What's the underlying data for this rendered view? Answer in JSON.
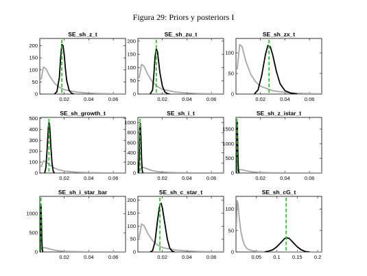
{
  "figure_title": "Figura 29: Priors y posteriors I",
  "colors": {
    "prior": "#a6a6a6",
    "posterior": "#000000",
    "mode": "#22cc22"
  },
  "chart_data": [
    {
      "type": "line",
      "title": "SE_sh_z_t",
      "xlim": [
        0,
        0.07
      ],
      "ylim": [
        0,
        230
      ],
      "xticks": [
        0.02,
        0.04,
        0.06
      ],
      "xtick_labels": [
        "0.02",
        "0.04",
        "0.06"
      ],
      "yticks": [
        0,
        50,
        100,
        150,
        200
      ],
      "ytick_labels": [
        "0",
        "50",
        "100",
        "150",
        "200"
      ],
      "series": [
        {
          "x": [
            0.001,
            0.003,
            0.005,
            0.008,
            0.012,
            0.016,
            0.02,
            0.03,
            0.04,
            0.05,
            0.06,
            0.07
          ],
          "y": [
            60,
            112,
            105,
            75,
            45,
            28,
            18,
            8,
            4,
            2,
            1,
            0.5
          ]
        },
        {
          "x": [
            0.012,
            0.014,
            0.016,
            0.017,
            0.018,
            0.019,
            0.02,
            0.021,
            0.022,
            0.024,
            0.026,
            0.028
          ],
          "y": [
            0,
            10,
            70,
            150,
            205,
            200,
            160,
            100,
            55,
            15,
            3,
            0
          ]
        }
      ],
      "mode_x": 0.018
    },
    {
      "type": "line",
      "title": "SE_sh_zu_t",
      "xlim": [
        0,
        0.07
      ],
      "ylim": [
        0,
        210
      ],
      "xticks": [
        0.02,
        0.04,
        0.06
      ],
      "xtick_labels": [
        "0.02",
        "0.04",
        "0.06"
      ],
      "yticks": [
        0,
        50,
        100,
        150,
        200
      ],
      "ytick_labels": [
        "0",
        "50",
        "100",
        "150",
        "200"
      ],
      "series": [
        {
          "x": [
            0.001,
            0.003,
            0.005,
            0.008,
            0.012,
            0.016,
            0.02,
            0.03,
            0.04,
            0.05,
            0.06,
            0.07
          ],
          "y": [
            60,
            112,
            105,
            75,
            45,
            28,
            18,
            8,
            4,
            2,
            1,
            0.5
          ]
        },
        {
          "x": [
            0.01,
            0.012,
            0.013,
            0.014,
            0.015,
            0.016,
            0.017,
            0.018,
            0.02,
            0.022,
            0.024,
            0.026
          ],
          "y": [
            0,
            15,
            70,
            140,
            170,
            160,
            120,
            80,
            30,
            8,
            2,
            0
          ]
        }
      ],
      "mode_x": 0.015
    },
    {
      "type": "line",
      "title": "SE_sh_zx_t",
      "xlim": [
        0,
        0.07
      ],
      "ylim": [
        0,
        135
      ],
      "xticks": [
        0.02,
        0.04,
        0.06
      ],
      "xtick_labels": [
        "0.02",
        "0.04",
        "0.06"
      ],
      "yticks": [
        0,
        50,
        100
      ],
      "ytick_labels": [
        "0",
        "50",
        "100"
      ],
      "series": [
        {
          "x": [
            0.001,
            0.003,
            0.005,
            0.008,
            0.012,
            0.016,
            0.02,
            0.03,
            0.04,
            0.05,
            0.06,
            0.07
          ],
          "y": [
            60,
            120,
            115,
            80,
            48,
            30,
            19,
            8,
            4,
            2,
            1,
            0.5
          ]
        },
        {
          "x": [
            0.015,
            0.018,
            0.021,
            0.024,
            0.026,
            0.028,
            0.03,
            0.033,
            0.036,
            0.04,
            0.045,
            0.05
          ],
          "y": [
            0,
            10,
            45,
            95,
            118,
            115,
            95,
            55,
            25,
            8,
            2,
            0
          ]
        }
      ],
      "mode_x": 0.027
    },
    {
      "type": "line",
      "title": "SE_sh_growth_t",
      "xlim": [
        0,
        0.07
      ],
      "ylim": [
        0,
        510
      ],
      "xticks": [
        0.02,
        0.04,
        0.06
      ],
      "xtick_labels": [
        "0.02",
        "0.04",
        "0.06"
      ],
      "yticks": [
        0,
        100,
        200,
        300,
        400,
        500
      ],
      "ytick_labels": [
        "0",
        "100",
        "200",
        "300",
        "400",
        "500"
      ],
      "series": [
        {
          "x": [
            0.001,
            0.003,
            0.005,
            0.008,
            0.012,
            0.016,
            0.02,
            0.03,
            0.04,
            0.05,
            0.06,
            0.07
          ],
          "y": [
            55,
            110,
            105,
            75,
            45,
            28,
            18,
            8,
            4,
            2,
            1,
            0.5
          ]
        },
        {
          "x": [
            0.004,
            0.005,
            0.006,
            0.007,
            0.0075,
            0.008,
            0.0085,
            0.009,
            0.01,
            0.011,
            0.012
          ],
          "y": [
            0,
            50,
            220,
            420,
            460,
            440,
            360,
            250,
            90,
            15,
            0
          ]
        }
      ],
      "mode_x": 0.0075
    },
    {
      "type": "line",
      "title": "SE_sh_i_t",
      "xlim": [
        0,
        0.07
      ],
      "ylim": [
        0,
        1100
      ],
      "xticks": [
        0.02,
        0.04,
        0.06
      ],
      "xtick_labels": [
        "0.02",
        "0.04",
        "0.06"
      ],
      "yticks": [
        0,
        200,
        400,
        600,
        800,
        1000
      ],
      "ytick_labels": [
        "0",
        "200",
        "400",
        "600",
        "800",
        "1000"
      ],
      "series": [
        {
          "x": [
            0.001,
            0.003,
            0.005,
            0.008,
            0.012,
            0.016,
            0.02,
            0.03,
            0.04,
            0.05,
            0.06,
            0.07
          ],
          "y": [
            60,
            115,
            108,
            78,
            46,
            29,
            18,
            8,
            4,
            2,
            1,
            0.5
          ]
        },
        {
          "x": [
            0.0005,
            0.001,
            0.0015,
            0.002,
            0.0025,
            0.003,
            0.0035,
            0.004
          ],
          "y": [
            0,
            300,
            900,
            980,
            700,
            300,
            60,
            0
          ]
        }
      ],
      "mode_x": 0.0018
    },
    {
      "type": "line",
      "title": "SE_sh_z_istar_t",
      "xlim": [
        0,
        0.07
      ],
      "ylim": [
        0,
        1900
      ],
      "xticks": [
        0.02,
        0.04,
        0.06
      ],
      "xtick_labels": [
        "0.02",
        "0.04",
        "0.06"
      ],
      "yticks": [
        0,
        500,
        1000,
        1500
      ],
      "ytick_labels": [
        "0",
        "500",
        "1000",
        "1500"
      ],
      "series": [
        {
          "x": [
            0.001,
            0.003,
            0.005,
            0.008,
            0.012,
            0.016,
            0.02,
            0.03,
            0.04,
            0.05,
            0.06,
            0.07
          ],
          "y": [
            60,
            115,
            108,
            78,
            46,
            29,
            18,
            8,
            4,
            2,
            1,
            0.5
          ]
        },
        {
          "x": [
            0.0002,
            0.0005,
            0.0008,
            0.001,
            0.0013,
            0.0016,
            0.002,
            0.0025
          ],
          "y": [
            0,
            500,
            1600,
            1750,
            1300,
            600,
            100,
            0
          ]
        }
      ],
      "mode_x": 0.0009
    },
    {
      "type": "line",
      "title": "SE_sh_i_star_bar",
      "xlim": [
        0,
        0.07
      ],
      "ylim": [
        0,
        1450
      ],
      "xticks": [
        0.02,
        0.04,
        0.06
      ],
      "xtick_labels": [
        "0.02",
        "0.04",
        "0.06"
      ],
      "yticks": [
        0,
        500,
        1000
      ],
      "ytick_labels": [
        "0",
        "500",
        "1000"
      ],
      "series": [
        {
          "x": [
            0.001,
            0.003,
            0.005,
            0.008,
            0.012,
            0.016,
            0.02,
            0.03,
            0.04,
            0.05,
            0.06,
            0.07
          ],
          "y": [
            60,
            115,
            108,
            78,
            46,
            29,
            18,
            8,
            4,
            2,
            1,
            0.5
          ]
        },
        {
          "x": [
            0.0002,
            0.0005,
            0.0008,
            0.001,
            0.0013,
            0.0016,
            0.002,
            0.0025
          ],
          "y": [
            0,
            400,
            1100,
            1250,
            900,
            400,
            80,
            0
          ]
        }
      ],
      "mode_x": 0.0009
    },
    {
      "type": "line",
      "title": "SE_sh_c_star_t",
      "xlim": [
        0,
        0.07
      ],
      "ylim": [
        0,
        215
      ],
      "xticks": [
        0.02,
        0.04,
        0.06
      ],
      "xtick_labels": [
        "0.02",
        "0.04",
        "0.06"
      ],
      "yticks": [
        0,
        50,
        100,
        150,
        200
      ],
      "ytick_labels": [
        "0",
        "50",
        "100",
        "150",
        "200"
      ],
      "series": [
        {
          "x": [
            0.001,
            0.003,
            0.005,
            0.008,
            0.012,
            0.016,
            0.02,
            0.03,
            0.04,
            0.05,
            0.06,
            0.07
          ],
          "y": [
            55,
            108,
            102,
            72,
            44,
            27,
            17,
            8,
            4,
            2,
            1,
            0.5
          ]
        },
        {
          "x": [
            0.01,
            0.012,
            0.014,
            0.016,
            0.018,
            0.019,
            0.02,
            0.022,
            0.024,
            0.026,
            0.028,
            0.03
          ],
          "y": [
            0,
            5,
            40,
            120,
            185,
            188,
            170,
            110,
            50,
            15,
            3,
            0
          ]
        }
      ],
      "mode_x": 0.018
    },
    {
      "type": "line",
      "title": "SE_sh_cG_t",
      "xlim": [
        0,
        0.21
      ],
      "ylim": [
        0,
        130
      ],
      "xticks": [
        0.05,
        0.1,
        0.15,
        0.2
      ],
      "xtick_labels": [
        "0.05",
        "0.1",
        "0.15",
        "0.2"
      ],
      "yticks": [
        0,
        50,
        100
      ],
      "ytick_labels": [
        "0",
        "50",
        "100"
      ],
      "series": [
        {
          "x": [
            0.001,
            0.003,
            0.005,
            0.008,
            0.012,
            0.016,
            0.02,
            0.025,
            0.03,
            0.04,
            0.05,
            0.07,
            0.1,
            0.15,
            0.21
          ],
          "y": [
            60,
            120,
            112,
            80,
            48,
            30,
            18,
            10,
            6,
            3,
            1.5,
            0.5,
            0.2,
            0,
            0
          ]
        },
        {
          "x": [
            0.07,
            0.08,
            0.09,
            0.1,
            0.11,
            0.12,
            0.125,
            0.13,
            0.14,
            0.15,
            0.16,
            0.17,
            0.18
          ],
          "y": [
            0,
            2,
            5,
            12,
            22,
            32,
            33,
            32,
            22,
            12,
            5,
            1,
            0
          ]
        }
      ],
      "mode_x": 0.123
    }
  ]
}
